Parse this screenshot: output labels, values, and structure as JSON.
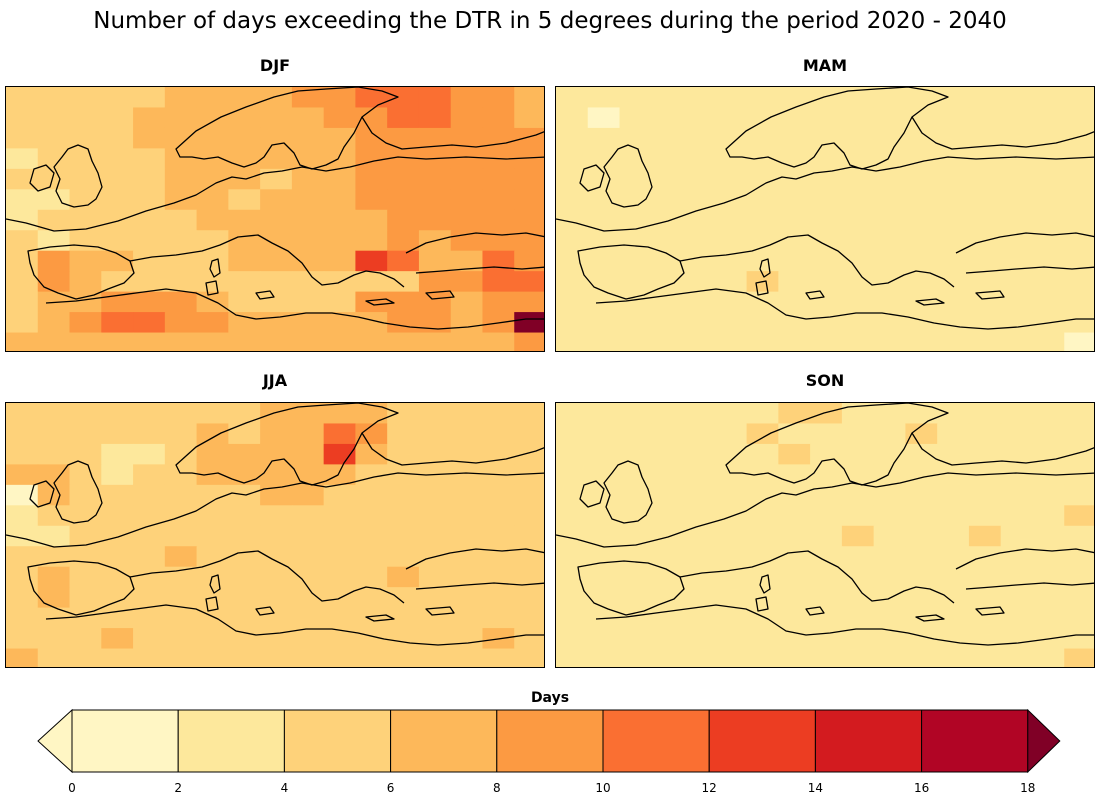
{
  "title": "Number of days exceeding the DTR in 5 degrees during the period 2020 - 2040",
  "panels": [
    {
      "id": "djf",
      "label": "DJF"
    },
    {
      "id": "mam",
      "label": "MAM"
    },
    {
      "id": "jja",
      "label": "JJA"
    },
    {
      "id": "son",
      "label": "SON"
    }
  ],
  "legend": {
    "title": "Days",
    "ticks": [
      "0",
      "2",
      "4",
      "6",
      "8",
      "10",
      "12",
      "14",
      "16",
      "18"
    ],
    "colors": [
      "#fff6c4",
      "#fde89c",
      "#fed27a",
      "#fdb85a",
      "#fc9a42",
      "#fa6f32",
      "#ec3d22",
      "#d31b1f",
      "#b10525",
      "#800026"
    ],
    "under_color": "#fff6c4",
    "over_color": "#800026"
  },
  "colors": {
    "coastline": "#000000",
    "border": "#000000"
  }
}
